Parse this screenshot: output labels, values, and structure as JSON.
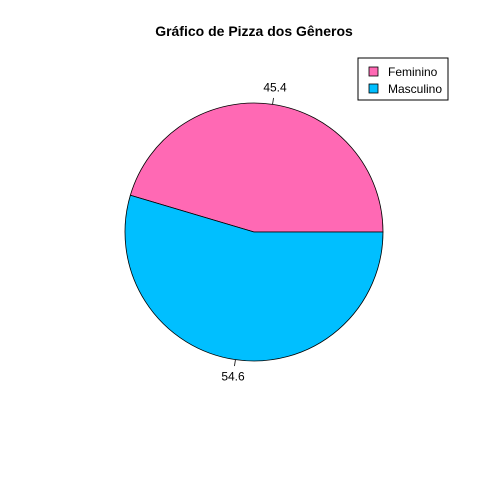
{
  "chart_data": {
    "type": "pie",
    "title": "Gráfico de Pizza dos Gêneros",
    "legend_position": "top-right",
    "slices": [
      {
        "name": "Feminino",
        "value": 45.4,
        "label": "45.4",
        "color": "#FF69B4"
      },
      {
        "name": "Masculino",
        "value": 54.6,
        "label": "54.6",
        "color": "#00BFFF"
      }
    ]
  }
}
